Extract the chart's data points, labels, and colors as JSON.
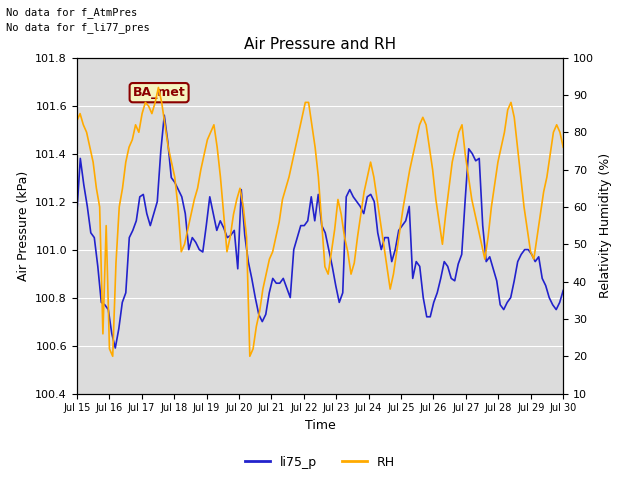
{
  "title": "Air Pressure and RH",
  "ylabel_left": "Air Pressure (kPa)",
  "ylabel_right": "Relativity Humidity (%)",
  "xlabel": "Time",
  "ylim_left": [
    100.4,
    101.8
  ],
  "ylim_right": [
    10,
    100
  ],
  "yticks_left": [
    100.4,
    100.6,
    100.8,
    101.0,
    101.2,
    101.4,
    101.6,
    101.8
  ],
  "yticks_right": [
    10,
    20,
    30,
    40,
    50,
    60,
    70,
    80,
    90,
    100
  ],
  "no_data_text1": "No data for f_AtmPres",
  "no_data_text2": "No data for f_li77_pres",
  "ba_met_label": "BA_met",
  "bg_color": "#dcdcdc",
  "line_color_pressure": "#2222cc",
  "line_color_rh": "#ffaa00",
  "legend_labels": [
    "li75_p",
    "RH"
  ],
  "x_tick_labels": [
    "Jul 15",
    "Jul 16",
    "Jul 17",
    "Jul 18",
    "Jul 19",
    "Jul 20",
    "Jul 21",
    "Jul 22",
    "Jul 23",
    "Jul 24",
    "Jul 25",
    "Jul 26",
    "Jul 27",
    "Jul 28",
    "Jul 29",
    "Jul 30"
  ],
  "x_tick_positions": [
    0,
    1,
    2,
    3,
    4,
    5,
    6,
    7,
    8,
    9,
    10,
    11,
    12,
    13,
    14,
    15
  ],
  "pressure_data": [
    101.15,
    101.38,
    101.27,
    101.18,
    101.07,
    101.05,
    100.93,
    100.78,
    100.77,
    100.75,
    100.65,
    100.59,
    100.67,
    100.78,
    100.82,
    101.05,
    101.08,
    101.12,
    101.22,
    101.23,
    101.15,
    101.1,
    101.15,
    101.2,
    101.41,
    101.56,
    101.45,
    101.3,
    101.28,
    101.25,
    101.22,
    101.15,
    101.0,
    101.05,
    101.03,
    101.0,
    100.99,
    101.1,
    101.22,
    101.15,
    101.08,
    101.12,
    101.09,
    101.05,
    101.06,
    101.08,
    100.92,
    101.25,
    101.06,
    100.95,
    100.88,
    100.8,
    100.73,
    100.7,
    100.73,
    100.82,
    100.88,
    100.86,
    100.86,
    100.88,
    100.84,
    100.8,
    101.0,
    101.05,
    101.1,
    101.1,
    101.12,
    101.22,
    101.12,
    101.23,
    101.1,
    101.07,
    101.0,
    100.93,
    100.85,
    100.78,
    100.82,
    101.22,
    101.25,
    101.22,
    101.2,
    101.18,
    101.15,
    101.22,
    101.23,
    101.2,
    101.07,
    101.0,
    101.05,
    101.05,
    100.95,
    101.0,
    101.08,
    101.1,
    101.12,
    101.18,
    100.88,
    100.95,
    100.93,
    100.8,
    100.72,
    100.72,
    100.78,
    100.82,
    100.88,
    100.95,
    100.93,
    100.88,
    100.87,
    100.94,
    100.98,
    101.21,
    101.42,
    101.4,
    101.37,
    101.38,
    101.1,
    100.95,
    100.97,
    100.92,
    100.87,
    100.77,
    100.75,
    100.78,
    100.8,
    100.87,
    100.95,
    100.98,
    101.0,
    101.0,
    100.98,
    100.95,
    100.97,
    100.88,
    100.85,
    100.8,
    100.77,
    100.75,
    100.78,
    100.83
  ],
  "rh_data": [
    83,
    85,
    82,
    80,
    76,
    72,
    65,
    60,
    26,
    55,
    22,
    20,
    45,
    60,
    65,
    72,
    76,
    78,
    82,
    80,
    85,
    88,
    87,
    85,
    88,
    92,
    88,
    82,
    76,
    72,
    68,
    60,
    48,
    50,
    54,
    58,
    62,
    65,
    70,
    74,
    78,
    80,
    82,
    76,
    68,
    58,
    48,
    52,
    58,
    62,
    65,
    60,
    52,
    20,
    22,
    28,
    32,
    38,
    42,
    46,
    48,
    52,
    56,
    62,
    65,
    68,
    72,
    76,
    80,
    84,
    88,
    88,
    82,
    76,
    68,
    56,
    44,
    42,
    48,
    54,
    62,
    58,
    52,
    48,
    42,
    45,
    52,
    58,
    64,
    68,
    72,
    68,
    62,
    56,
    50,
    44,
    38,
    42,
    48,
    54,
    60,
    65,
    70,
    74,
    78,
    82,
    84,
    82,
    76,
    70,
    62,
    56,
    50,
    58,
    65,
    72,
    76,
    80,
    82,
    74,
    68,
    62,
    58,
    54,
    50,
    46,
    52,
    60,
    66,
    72,
    76,
    80,
    86,
    88,
    84,
    76,
    68,
    60,
    54,
    48,
    46,
    52,
    58,
    64,
    68,
    74,
    80,
    82,
    80,
    76
  ]
}
